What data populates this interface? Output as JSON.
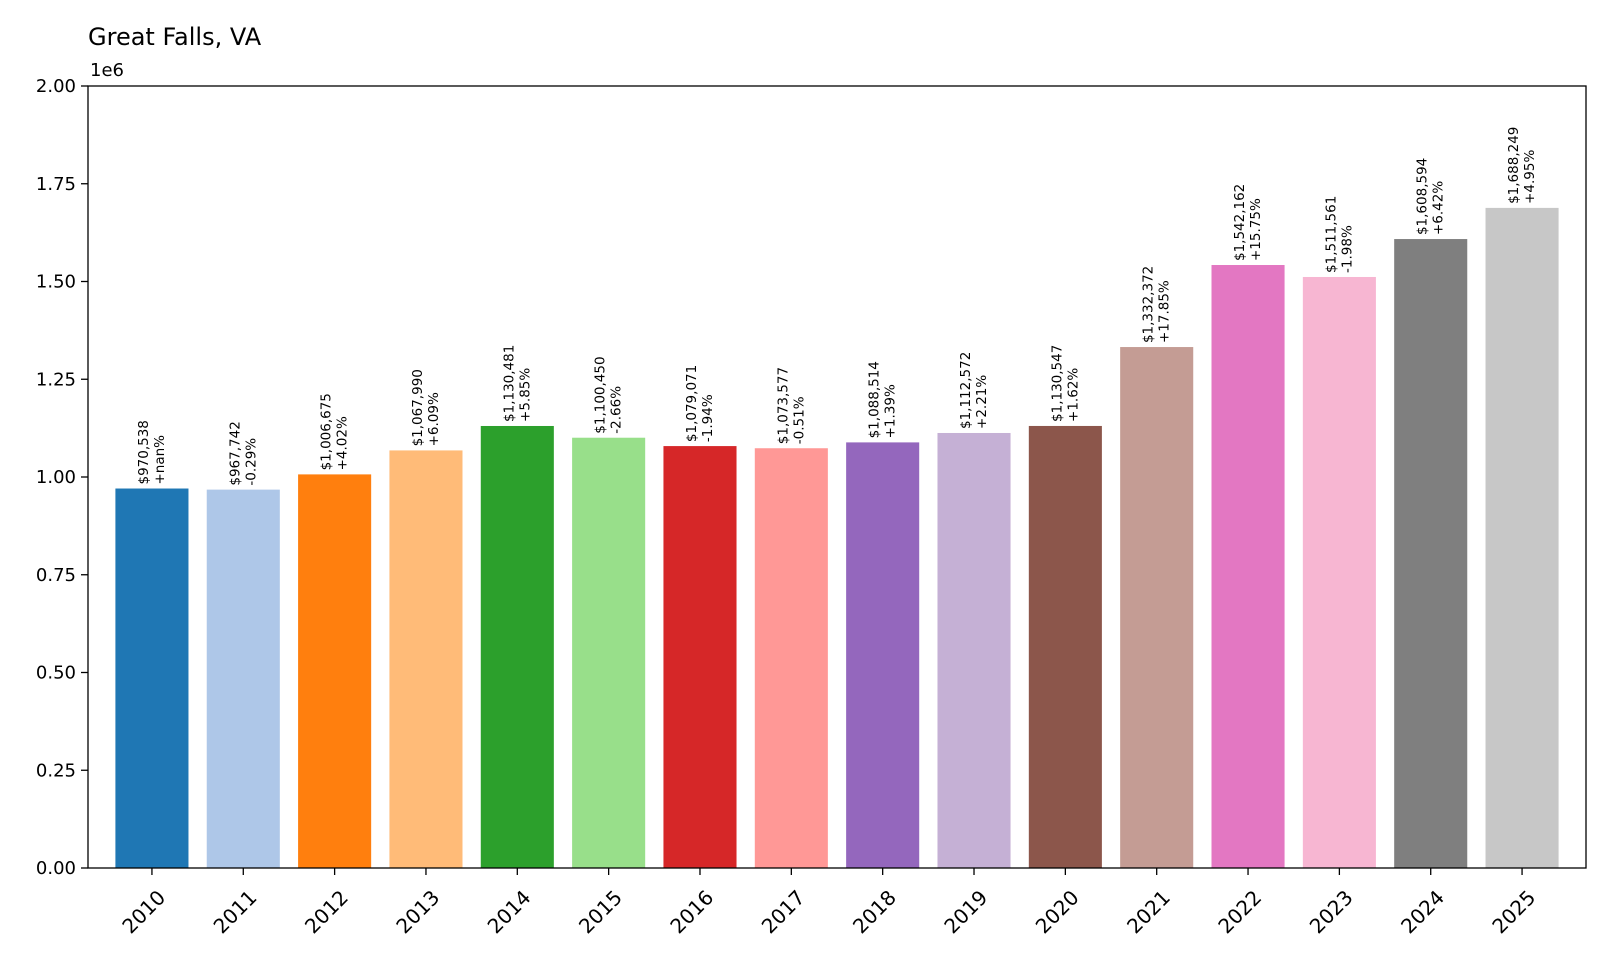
{
  "chart_data": {
    "type": "bar",
    "title": "Great Falls, VA",
    "xlabel": "",
    "ylabel": "",
    "y_offset_label": "1e6",
    "ylim": [
      0,
      2000000
    ],
    "yticks": [
      0,
      250000,
      500000,
      750000,
      1000000,
      1250000,
      1500000,
      1750000,
      2000000
    ],
    "ytick_labels": [
      "0.00",
      "0.25",
      "0.50",
      "0.75",
      "1.00",
      "1.25",
      "1.50",
      "1.75",
      "2.00"
    ],
    "grid": false,
    "categories": [
      "2010",
      "2011",
      "2012",
      "2013",
      "2014",
      "2015",
      "2016",
      "2017",
      "2018",
      "2019",
      "2020",
      "2021",
      "2022",
      "2023",
      "2024",
      "2025"
    ],
    "values": [
      970538,
      967742,
      1006675,
      1067990,
      1130481,
      1100450,
      1079071,
      1073577,
      1088514,
      1112572,
      1130547,
      1332372,
      1542162,
      1511561,
      1608594,
      1688249
    ],
    "value_labels": [
      "$970,538",
      "$967,742",
      "$1,006,675",
      "$1,067,990",
      "$1,130,481",
      "$1,100,450",
      "$1,079,071",
      "$1,073,577",
      "$1,088,514",
      "$1,112,572",
      "$1,130,547",
      "$1,332,372",
      "$1,542,162",
      "$1,511,561",
      "$1,608,594",
      "$1,688,249"
    ],
    "change_labels": [
      "+nan%",
      "-0.29%",
      "+4.02%",
      "+6.09%",
      "+5.85%",
      "-2.66%",
      "-1.94%",
      "-0.51%",
      "+1.39%",
      "+2.21%",
      "+1.62%",
      "+17.85%",
      "+15.75%",
      "-1.98%",
      "+6.42%",
      "+4.95%"
    ],
    "colors": [
      "#1f77b4",
      "#aec7e8",
      "#ff7f0e",
      "#ffbb78",
      "#2ca02c",
      "#98df8a",
      "#d62728",
      "#ff9896",
      "#9467bd",
      "#c5b0d5",
      "#8c564b",
      "#c49c94",
      "#e377c2",
      "#f7b6d2",
      "#7f7f7f",
      "#c7c7c7"
    ]
  }
}
